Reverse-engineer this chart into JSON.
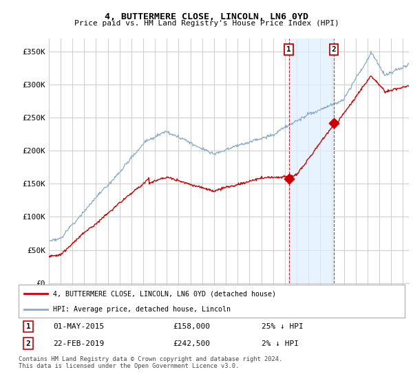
{
  "title": "4, BUTTERMERE CLOSE, LINCOLN, LN6 0YD",
  "subtitle": "Price paid vs. HM Land Registry's House Price Index (HPI)",
  "ylabel_ticks": [
    "£0",
    "£50K",
    "£100K",
    "£150K",
    "£200K",
    "£250K",
    "£300K",
    "£350K"
  ],
  "ytick_values": [
    0,
    50000,
    100000,
    150000,
    200000,
    250000,
    300000,
    350000
  ],
  "ylim": [
    0,
    370000
  ],
  "xlim_start": 1995.0,
  "xlim_end": 2025.5,
  "transaction1": {
    "date": 2015.33,
    "price": 158000,
    "label": "1",
    "text": "01-MAY-2015",
    "amount": "£158,000",
    "pct": "25% ↓ HPI"
  },
  "transaction2": {
    "date": 2019.13,
    "price": 242500,
    "label": "2",
    "text": "22-FEB-2019",
    "amount": "£242,500",
    "pct": "2% ↓ HPI"
  },
  "legend_line1": "4, BUTTERMERE CLOSE, LINCOLN, LN6 0YD (detached house)",
  "legend_line2": "HPI: Average price, detached house, Lincoln",
  "footer": "Contains HM Land Registry data © Crown copyright and database right 2024.\nThis data is licensed under the Open Government Licence v3.0.",
  "line_red_color": "#cc0000",
  "line_blue_color": "#88aacc",
  "shade_color": "#ddeeff",
  "vline_color": "#cc0000",
  "grid_color": "#cccccc",
  "background_color": "#ffffff",
  "plot_bg_color": "#ffffff"
}
